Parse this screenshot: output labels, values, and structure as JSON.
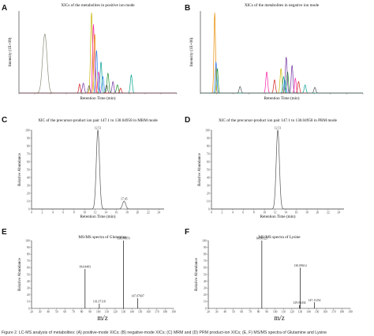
{
  "caption": "Figure 2. LC-MS analysis of metabolites: (A) positive-mode XICs; (B) negative-mode XICs; (C) MRM and (D) PRM product-ion XICs; (E, F) MS/MS spectra of Glutamine and Lysine",
  "chart_data": [
    {
      "id": "A",
      "letter": "A",
      "type": "line",
      "title": "XICs of the metabolites in positive ion mode",
      "xlabel": "Retention Time (min)",
      "ylabel": "Intensity (1E+09)",
      "xlim": [
        0,
        25
      ],
      "ylim": [
        0,
        5
      ],
      "xticks": [],
      "yticks": [],
      "series": [
        {
          "color": "#8c8c7a",
          "peaks": [
            [
              4.1,
              3.6,
              0.35
            ]
          ]
        },
        {
          "color": "#c8b400",
          "peaks": [
            [
              11.5,
              4.9,
              0.15
            ]
          ]
        },
        {
          "color": "#ff1ea8",
          "peaks": [
            [
              11.8,
              4.2,
              0.14
            ],
            [
              12.6,
              1.3,
              0.12
            ]
          ]
        },
        {
          "color": "#e88a00",
          "peaks": [
            [
              12.0,
              3.6,
              0.14
            ]
          ]
        },
        {
          "color": "#2f80ff",
          "peaks": [
            [
              12.3,
              2.6,
              0.14
            ],
            [
              13.3,
              1.0,
              0.15
            ]
          ]
        },
        {
          "color": "#00a090",
          "peaks": [
            [
              13.0,
              1.9,
              0.14
            ],
            [
              17.8,
              1.1,
              0.15
            ]
          ]
        },
        {
          "color": "#1a8f2a",
          "peaks": [
            [
              14.1,
              1.2,
              0.15
            ],
            [
              15.6,
              0.5,
              0.15
            ]
          ]
        },
        {
          "color": "#7030a0",
          "peaks": [
            [
              10.2,
              0.6,
              0.15
            ],
            [
              14.9,
              0.7,
              0.14
            ]
          ]
        },
        {
          "color": "#d42020",
          "peaks": [
            [
              9.6,
              0.55,
              0.12
            ],
            [
              16.1,
              0.3,
              0.13
            ]
          ]
        },
        {
          "color": "#555555",
          "peaks": [
            [
              11.1,
              0.45,
              0.13
            ],
            [
              13.9,
              0.5,
              0.14
            ]
          ]
        }
      ]
    },
    {
      "id": "B",
      "letter": "B",
      "type": "line",
      "title": "XICs of the metabolites in negative ion mode",
      "xlabel": "Retention Time (min)",
      "ylabel": "Intensity (1E+06)",
      "xlim": [
        0,
        25
      ],
      "ylim": [
        0,
        5
      ],
      "xticks": [],
      "yticks": [],
      "series": [
        {
          "color": "#e88a00",
          "peaks": [
            [
              2.2,
              4.9,
              0.12
            ]
          ]
        },
        {
          "color": "#2f80ff",
          "peaks": [
            [
              2.4,
              1.9,
              0.12
            ],
            [
              13.0,
              0.8,
              0.14
            ]
          ]
        },
        {
          "color": "#1a8f2a",
          "peaks": [
            [
              2.6,
              1.5,
              0.12
            ],
            [
              13.4,
              1.3,
              0.14
            ]
          ]
        },
        {
          "color": "#7030a0",
          "peaks": [
            [
              13.2,
              2.2,
              0.14
            ],
            [
              14.1,
              1.7,
              0.13
            ]
          ]
        },
        {
          "color": "#ff1ea8",
          "peaks": [
            [
              10.2,
              1.3,
              0.14
            ],
            [
              14.6,
              0.9,
              0.13
            ]
          ]
        },
        {
          "color": "#c8b400",
          "peaks": [
            [
              12.4,
              1.5,
              0.14
            ]
          ]
        },
        {
          "color": "#d42020",
          "peaks": [
            [
              11.4,
              0.8,
              0.14
            ],
            [
              15.1,
              0.7,
              0.14
            ]
          ]
        },
        {
          "color": "#00a090",
          "peaks": [
            [
              12.8,
              1.0,
              0.14
            ],
            [
              16.1,
              0.5,
              0.14
            ]
          ]
        },
        {
          "color": "#555555",
          "peaks": [
            [
              6.1,
              0.4,
              0.14
            ],
            [
              17.6,
              0.35,
              0.14
            ]
          ]
        }
      ]
    },
    {
      "id": "C",
      "letter": "C",
      "type": "line",
      "title": "XIC of the precursor-product ion pair 147.1 to 130.04958 in MRM mode",
      "xlabel": "Retention Time (min)",
      "ylabel": "Relative Abundance",
      "xlim": [
        0,
        25
      ],
      "ylim": [
        0,
        100
      ],
      "xticks": [
        0,
        2,
        4,
        6,
        8,
        10,
        12,
        14,
        16,
        18,
        20,
        22,
        24
      ],
      "yticks": [
        0,
        10,
        20,
        30,
        40,
        50,
        60,
        70,
        80,
        90,
        100
      ],
      "series": [
        {
          "color": "#555555",
          "peaks": [
            [
              12.51,
              100,
              0.3
            ],
            [
              17.45,
              10,
              0.3
            ]
          ]
        }
      ],
      "labels": [
        {
          "x": 12.51,
          "y": 100,
          "text": "12.51"
        },
        {
          "x": 17.45,
          "y": 10,
          "text": "17.45"
        }
      ]
    },
    {
      "id": "D",
      "letter": "D",
      "type": "line",
      "title": "XIC of the precursor-product ion pair 147.1 to 130.04958 in PRM mode",
      "xlabel": "Retention Time (min)",
      "ylabel": "Relative Abundance",
      "xlim": [
        0,
        25
      ],
      "ylim": [
        0,
        100
      ],
      "xticks": [
        0,
        2,
        4,
        6,
        8,
        10,
        12,
        14,
        16,
        18,
        20,
        22,
        24
      ],
      "yticks": [
        0,
        10,
        20,
        30,
        40,
        50,
        60,
        70,
        80,
        90,
        100
      ],
      "series": [
        {
          "color": "#555555",
          "peaks": [
            [
              12.51,
              100,
              0.3
            ]
          ]
        }
      ],
      "labels": [
        {
          "x": 12.51,
          "y": 100,
          "text": "12.51"
        }
      ]
    },
    {
      "id": "E",
      "letter": "E",
      "type": "bar",
      "title": "MS/MS spectra of Glutamine",
      "xlabel": "m/z",
      "ylabel": "Relative Abundance",
      "xlim": [
        20,
        190
      ],
      "ylim": [
        0,
        100
      ],
      "xticks": [
        20,
        30,
        40,
        50,
        60,
        70,
        80,
        90,
        100,
        110,
        120,
        130,
        140,
        150,
        160,
        170,
        180,
        190
      ],
      "yticks": [
        0,
        10,
        20,
        30,
        40,
        50,
        60,
        70,
        80,
        90,
        100
      ],
      "sticks": [
        {
          "x": 84.04483,
          "y": 58,
          "label": "84.04483"
        },
        {
          "x": 101.07118,
          "y": 7,
          "label": "101.07118"
        },
        {
          "x": 130.0497,
          "y": 100,
          "label": "130.04970"
        },
        {
          "x": 147.07607,
          "y": 15,
          "label": "147.07607"
        }
      ]
    },
    {
      "id": "F",
      "letter": "F",
      "type": "bar",
      "title": "MS/MS spectra of Lysine",
      "xlabel": "m/z",
      "ylabel": "Relative Abundance",
      "xlim": [
        20,
        190
      ],
      "ylim": [
        0,
        100
      ],
      "xticks": [
        20,
        30,
        40,
        50,
        60,
        70,
        80,
        90,
        100,
        110,
        120,
        130,
        140,
        150,
        160,
        170,
        180,
        190
      ],
      "yticks": [
        0,
        10,
        20,
        30,
        40,
        50,
        60,
        70,
        80,
        90,
        100
      ],
      "sticks": [
        {
          "x": 84.08125,
          "y": 100,
          "label": "84.08125"
        },
        {
          "x": 129.06434,
          "y": 5,
          "label": "129.06434"
        },
        {
          "x": 130.09614,
          "y": 60,
          "label": "130.09614"
        },
        {
          "x": 147.11252,
          "y": 9,
          "label": "147.11252"
        }
      ]
    }
  ]
}
